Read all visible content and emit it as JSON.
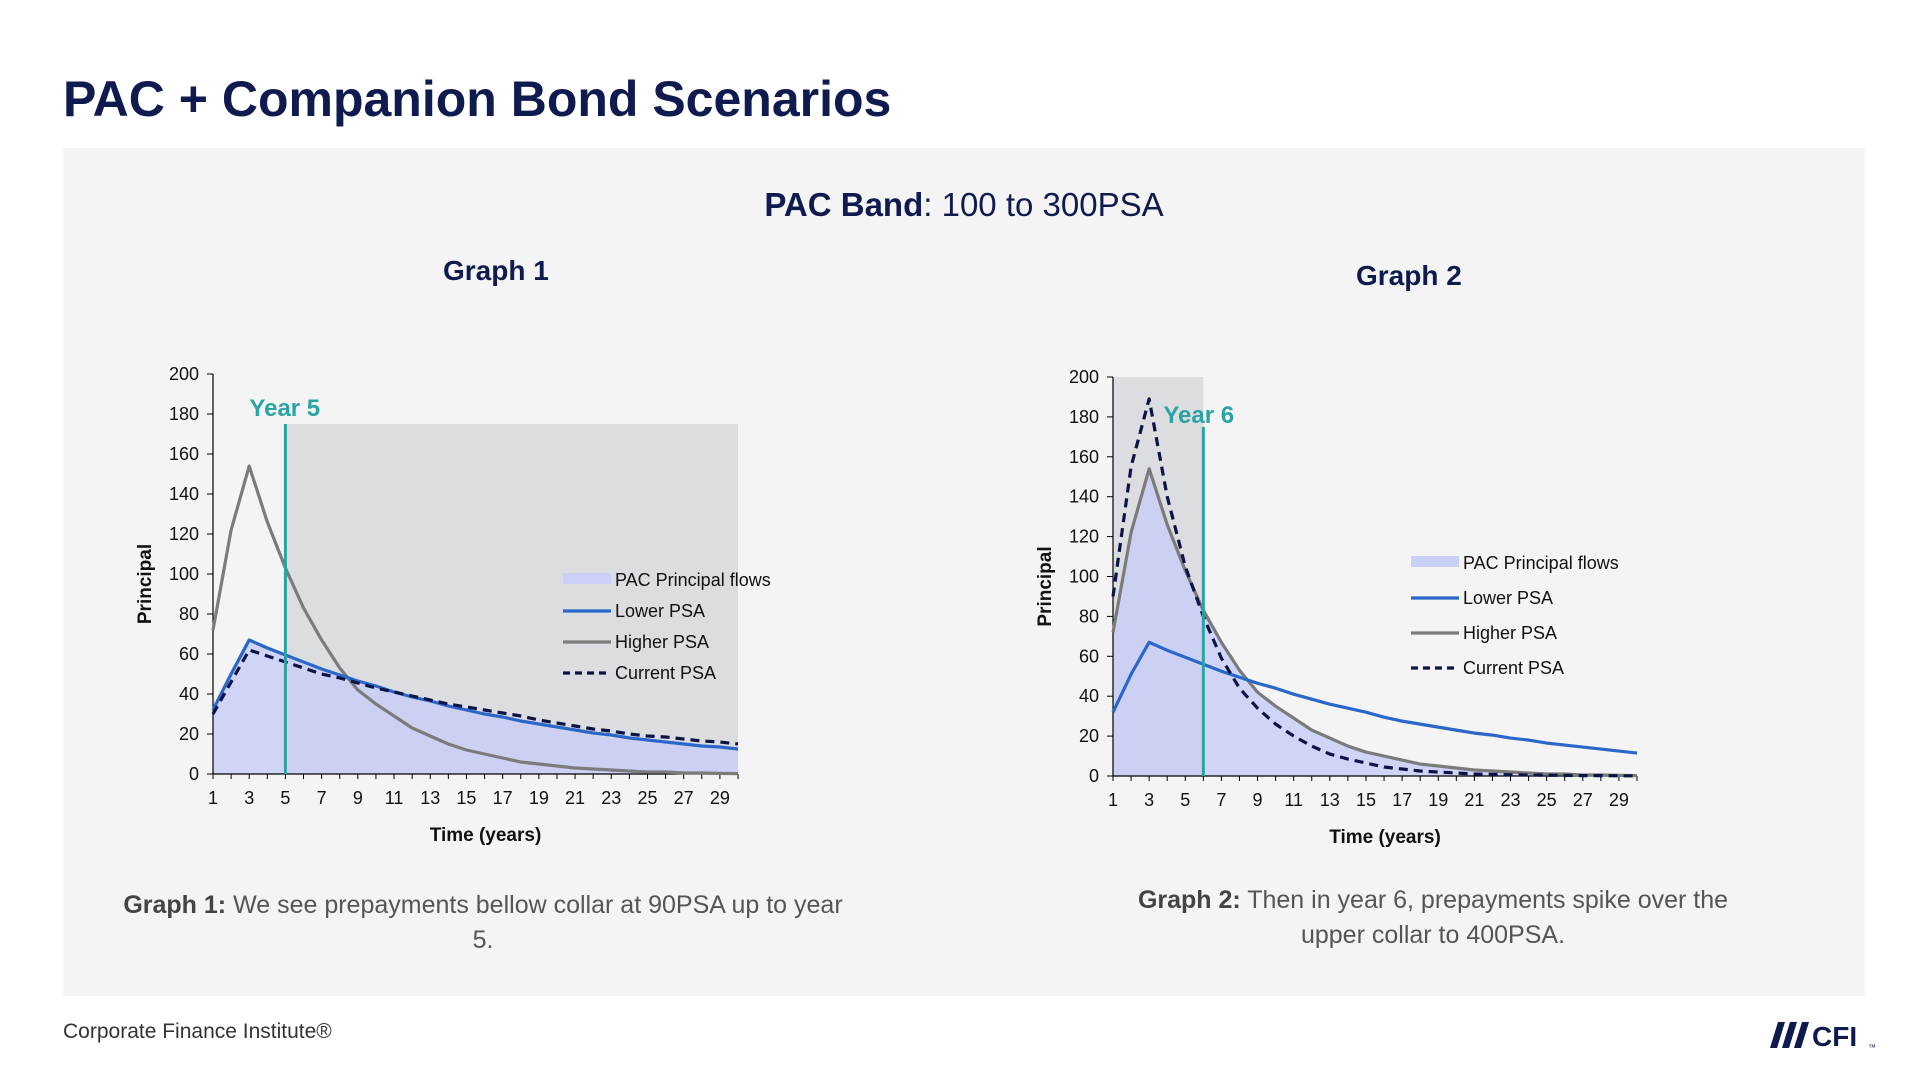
{
  "page": {
    "title": "PAC + Companion Bond Scenarios",
    "band_label_bold": "PAC Band",
    "band_label_rest": ": 100 to 300PSA",
    "footer": "Corporate Finance Institute®",
    "logo_text": "CFI",
    "logo_tm": "™"
  },
  "captions": [
    {
      "bold": "Graph 1:",
      "text": " We see prepayments bellow collar at 90PSA up to year 5."
    },
    {
      "bold": "Graph 2:",
      "text": " Then in year 6, prepayments spike over the upper collar to 400PSA."
    }
  ],
  "colors": {
    "accent": "#2aa3a3",
    "title": "#0f1a4f",
    "pac_fill": "#c9cff7",
    "lower": "#2a67c9",
    "higher": "#7b7b7b",
    "current": "#0c1446",
    "shade": "#dcdde1"
  },
  "chart_data": [
    {
      "type": "line",
      "title": "Graph 1",
      "xlabel": "Time (years)",
      "ylabel": "Principal",
      "xlim": [
        1,
        30
      ],
      "ylim": [
        0,
        200
      ],
      "x_ticks": [
        1,
        3,
        5,
        7,
        9,
        11,
        13,
        15,
        17,
        19,
        21,
        23,
        25,
        27,
        29
      ],
      "y_ticks": [
        0,
        20,
        40,
        60,
        80,
        100,
        120,
        140,
        160,
        180,
        200
      ],
      "marker": {
        "x": 5,
        "label": "Year 5"
      },
      "shaded_region": {
        "x_from": 5,
        "x_to": 30,
        "y_to": 175
      },
      "legend": [
        "PAC Principal flows",
        "Lower PSA",
        "Higher PSA",
        "Current PSA"
      ],
      "x": [
        1,
        2,
        3,
        4,
        5,
        6,
        7,
        8,
        9,
        10,
        11,
        12,
        13,
        14,
        15,
        16,
        17,
        18,
        19,
        20,
        21,
        22,
        23,
        24,
        25,
        26,
        27,
        28,
        29,
        30
      ],
      "series": [
        {
          "name": "PAC Principal flows",
          "style": "area",
          "values": [
            31,
            49,
            67,
            63,
            59,
            55,
            52,
            49,
            46,
            44,
            41,
            39,
            37,
            35,
            32,
            30,
            28,
            26,
            24,
            22.5,
            21,
            19.5,
            18,
            17,
            16,
            15,
            14,
            13.5,
            13,
            12.5
          ]
        },
        {
          "name": "Lower PSA",
          "style": "line",
          "values": [
            32,
            50,
            67,
            63,
            59.5,
            56,
            52.5,
            49.5,
            46.5,
            44,
            41,
            38.5,
            36.5,
            34,
            32,
            30,
            28.5,
            26.5,
            25,
            23.5,
            22,
            20.5,
            19.5,
            18,
            17,
            16,
            15,
            14,
            13.5,
            12.5
          ]
        },
        {
          "name": "Higher PSA",
          "style": "line",
          "values": [
            72,
            122,
            154,
            126,
            103,
            83,
            67,
            53,
            42,
            35,
            29,
            23,
            19,
            15,
            12,
            10,
            8,
            6,
            5,
            4,
            3,
            2.5,
            2,
            1.5,
            1,
            1,
            0.5,
            0.5,
            0.3,
            0.2
          ]
        },
        {
          "name": "Current PSA",
          "style": "dashed",
          "values": [
            30,
            46,
            62,
            59,
            56,
            53,
            50,
            48,
            45.5,
            43,
            41,
            39,
            37,
            35,
            33.5,
            32,
            30.5,
            29,
            27,
            25.5,
            24,
            22.5,
            21.5,
            20,
            19,
            18.5,
            17.5,
            16.5,
            16,
            15
          ]
        }
      ]
    },
    {
      "type": "line",
      "title": "Graph 2",
      "xlabel": "Time (years)",
      "ylabel": "Principal",
      "xlim": [
        1,
        30
      ],
      "ylim": [
        0,
        200
      ],
      "x_ticks": [
        1,
        3,
        5,
        7,
        9,
        11,
        13,
        15,
        17,
        19,
        21,
        23,
        25,
        27,
        29
      ],
      "y_ticks": [
        0,
        20,
        40,
        60,
        80,
        100,
        120,
        140,
        160,
        180,
        200
      ],
      "marker": {
        "x": 6,
        "label": "Year 6"
      },
      "shaded_region": {
        "x_from": 1,
        "x_to": 6,
        "y_to": 200
      },
      "legend": [
        "PAC Principal flows",
        "Lower PSA",
        "Higher PSA",
        "Current PSA"
      ],
      "x": [
        1,
        2,
        3,
        4,
        5,
        6,
        7,
        8,
        9,
        10,
        11,
        12,
        13,
        14,
        15,
        16,
        17,
        18,
        19,
        20,
        21,
        22,
        23,
        24,
        25,
        26,
        27,
        28,
        29,
        30
      ],
      "series": [
        {
          "name": "PAC Principal flows",
          "style": "area",
          "values": [
            72,
            122,
            154,
            126,
            103,
            83,
            67,
            53,
            42,
            35,
            29,
            23,
            19,
            15,
            12,
            10,
            8,
            6,
            5,
            4,
            3,
            2.5,
            2,
            1.5,
            1,
            1,
            0.5,
            0.5,
            0.3,
            0.2
          ]
        },
        {
          "name": "Lower PSA",
          "style": "line",
          "values": [
            32,
            51,
            67,
            63,
            59.5,
            56,
            52.5,
            49.5,
            46.5,
            44,
            41,
            38.5,
            36,
            34,
            32,
            29.5,
            27.5,
            26,
            24.5,
            23,
            21.5,
            20.5,
            19,
            18,
            16.5,
            15.5,
            14.5,
            13.5,
            12.5,
            11.5
          ]
        },
        {
          "name": "Higher PSA",
          "style": "line",
          "values": [
            72,
            122,
            154,
            126,
            103,
            83,
            67,
            53,
            42,
            35,
            29,
            23,
            19,
            15,
            12,
            10,
            8,
            6,
            5,
            4,
            3,
            2.5,
            2,
            1.5,
            1,
            1,
            0.5,
            0.5,
            0.3,
            0.2
          ]
        },
        {
          "name": "Current PSA",
          "style": "dashed",
          "values": [
            90,
            155,
            189,
            140,
            105,
            80,
            59,
            44,
            34,
            26,
            20,
            15,
            11,
            8.5,
            6.5,
            4.5,
            3.5,
            2.5,
            2,
            1.5,
            1,
            0.8,
            0.6,
            0.5,
            0.4,
            0.3,
            0.2,
            0.2,
            0.1,
            0.1
          ]
        }
      ]
    }
  ]
}
